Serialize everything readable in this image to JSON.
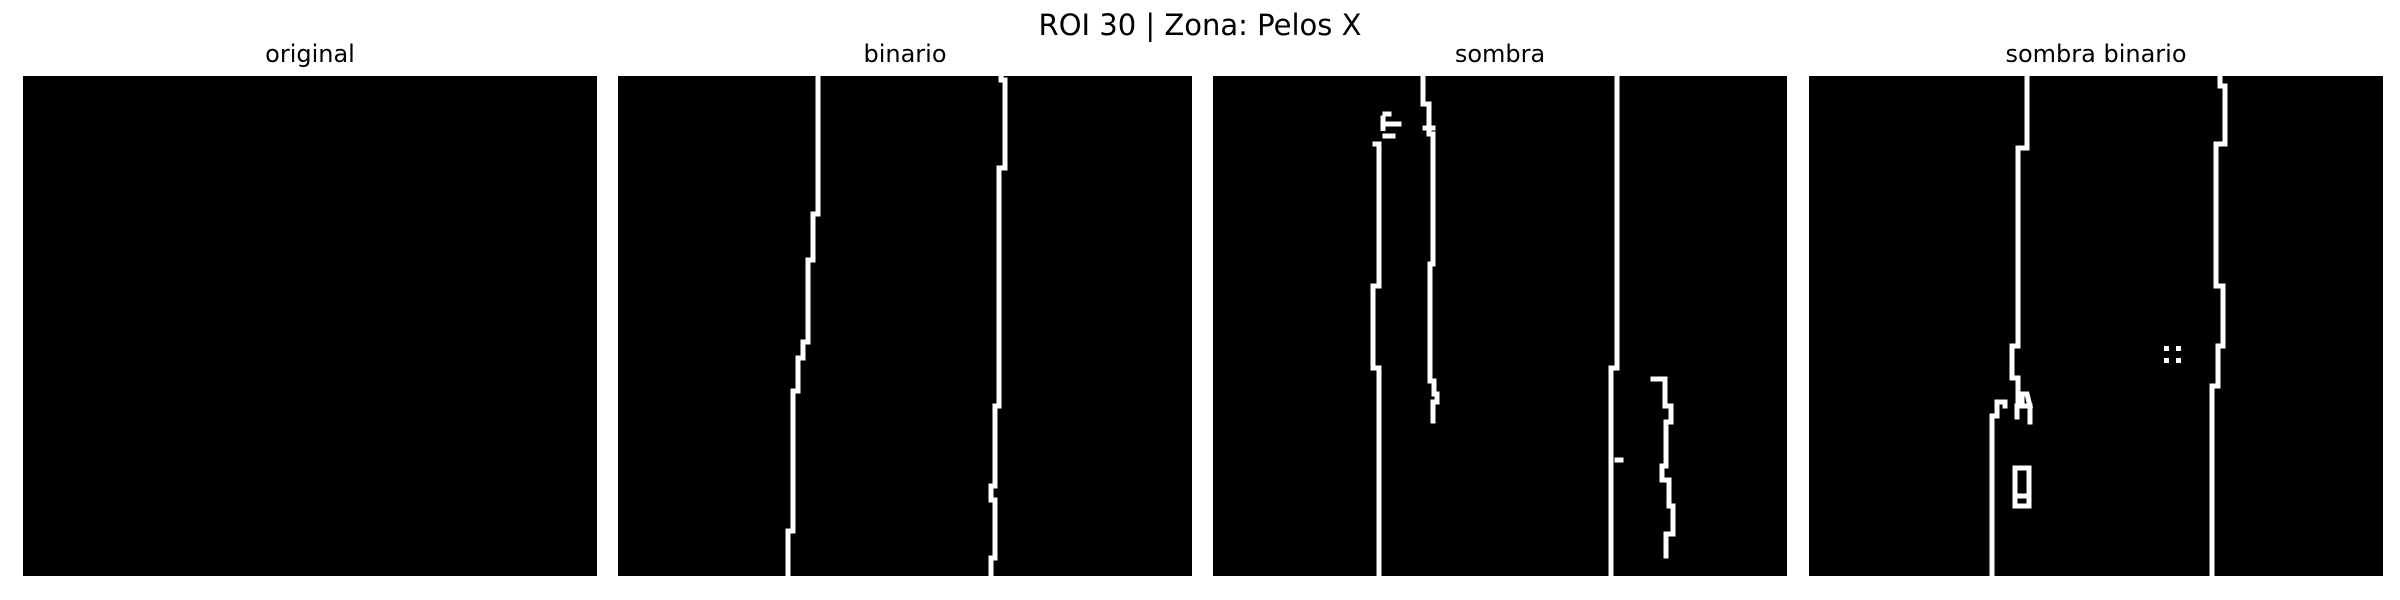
{
  "figure": {
    "suptitle": "ROI 30 | Zona:  Pelos X",
    "panels": [
      {
        "title": "original",
        "strokes": []
      },
      {
        "title": "binario",
        "strokes": [
          [
            [
              200,
              0
            ],
            [
              200,
              138
            ],
            [
              195,
              138
            ],
            [
              195,
              184
            ],
            [
              190,
              184
            ],
            [
              190,
              266
            ],
            [
              185,
              266
            ],
            [
              185,
              282
            ],
            [
              180,
              282
            ],
            [
              180,
              315
            ],
            [
              175,
              315
            ],
            [
              175,
              455
            ],
            [
              170,
              455
            ],
            [
              170,
              500
            ]
          ],
          [
            [
              383,
              0
            ],
            [
              383,
              4
            ],
            [
              387,
              4
            ],
            [
              387,
              92
            ],
            [
              381,
              92
            ],
            [
              381,
              330
            ],
            [
              377,
              330
            ],
            [
              377,
              410
            ],
            [
              373,
              410
            ],
            [
              373,
              424
            ],
            [
              377,
              424
            ],
            [
              377,
              482
            ],
            [
              373,
              482
            ],
            [
              373,
              500
            ]
          ]
        ]
      },
      {
        "title": "sombra",
        "strokes": [
          [
            [
              210,
              0
            ],
            [
              210,
              28
            ],
            [
              216,
              28
            ],
            [
              216,
              58
            ],
            [
              220,
              58
            ],
            [
              220,
              188
            ],
            [
              217,
              188
            ],
            [
              217,
              305
            ],
            [
              221,
              305
            ],
            [
              221,
              318
            ],
            [
              224,
              318
            ],
            [
              224,
              326
            ],
            [
              220,
              326
            ],
            [
              220,
              345
            ]
          ],
          [
            [
              212,
              52
            ],
            [
              220,
              52
            ]
          ],
          [
            [
              170,
              42
            ],
            [
              170,
              55
            ],
            [
              170,
              48
            ],
            [
              186,
              48
            ]
          ],
          [
            [
              172,
              38
            ],
            [
              176,
              38
            ]
          ],
          [
            [
              172,
              60
            ],
            [
              180,
              60
            ]
          ],
          [
            [
              162,
              68
            ],
            [
              166,
              68
            ],
            [
              166,
              210
            ],
            [
              160,
              210
            ],
            [
              160,
              292
            ],
            [
              166,
              292
            ],
            [
              166,
              500
            ]
          ],
          [
            [
              404,
              0
            ],
            [
              404,
              292
            ],
            [
              398,
              292
            ],
            [
              398,
              500
            ]
          ],
          [
            [
              404,
              384
            ],
            [
              408,
              384
            ]
          ],
          [
            [
              440,
              303
            ],
            [
              452,
              303
            ],
            [
              452,
              330
            ],
            [
              458,
              330
            ],
            [
              458,
              346
            ],
            [
              453,
              346
            ],
            [
              453,
              390
            ],
            [
              449,
              390
            ],
            [
              449,
              404
            ],
            [
              456,
              404
            ],
            [
              456,
              430
            ],
            [
              460,
              430
            ],
            [
              460,
              458
            ],
            [
              453,
              458
            ],
            [
              453,
              480
            ]
          ]
        ]
      },
      {
        "title": "sombra binario",
        "strokes": [
          [
            [
              218,
              0
            ],
            [
              218,
              72
            ],
            [
              209,
              72
            ],
            [
              209,
              270
            ],
            [
              203,
              270
            ],
            [
              203,
              302
            ],
            [
              209,
              302
            ],
            [
              209,
              330
            ],
            [
              221,
              330
            ],
            [
              221,
              346
            ]
          ],
          [
            [
              221,
              330
            ],
            [
              218,
              318
            ],
            [
              213,
              318
            ],
            [
              213,
              330
            ],
            [
              208,
              330
            ],
            [
              208,
              341
            ]
          ],
          [
            [
              196,
              330
            ],
            [
              196,
              326
            ],
            [
              188,
              326
            ],
            [
              188,
              340
            ],
            [
              183,
              340
            ],
            [
              183,
              500
            ]
          ],
          [
            [
              206,
              392
            ],
            [
              220,
              392
            ],
            [
              220,
              430
            ],
            [
              206,
              430
            ],
            [
              206,
              392
            ]
          ],
          [
            [
              206,
              420
            ],
            [
              220,
              420
            ]
          ],
          [
            [
              411,
              0
            ],
            [
              411,
              10
            ],
            [
              416,
              10
            ],
            [
              416,
              68
            ],
            [
              407,
              68
            ],
            [
              407,
              210
            ],
            [
              414,
              210
            ],
            [
              414,
              270
            ],
            [
              409,
              270
            ],
            [
              409,
              310
            ],
            [
              403,
              310
            ],
            [
              403,
              500
            ]
          ]
        ]
      }
    ]
  }
}
